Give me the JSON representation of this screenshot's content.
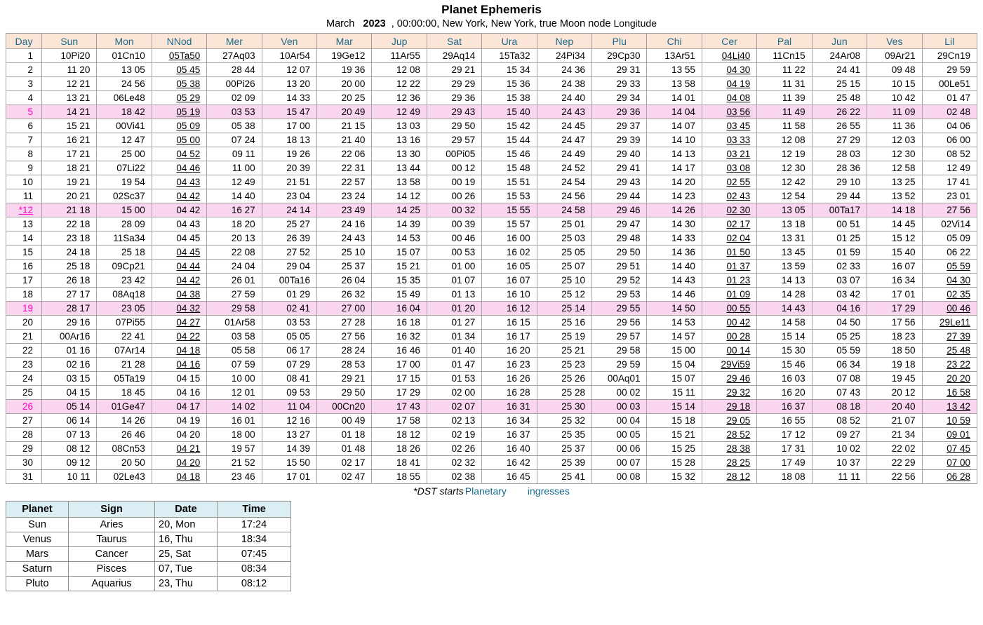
{
  "title": "Planet Ephemeris",
  "subtitle": {
    "month": "March",
    "year": "2023",
    "rest": ", 00:00:00, New York, New York, true Moon node",
    "longitude_label": "Longitude"
  },
  "footer": {
    "dst_note": "*DST starts",
    "ingresses_word1": "Planetary",
    "ingresses_word2": "ingresses"
  },
  "colors": {
    "header_bg": "#fbe5d7",
    "header_text": "#1b6a8a",
    "highlight_row_bg": "#fad5ef",
    "highlight_day_text": "#ff00bf",
    "ingress_header_bg": "#daeef3",
    "link_teal": "#17688c",
    "grid_line": "#a3a3a3"
  },
  "ephemeris": {
    "columns": [
      "Day",
      "Sun",
      "Mon",
      "NNod",
      "Mer",
      "Ven",
      "Mar",
      "Jup",
      "Sat",
      "Ura",
      "Nep",
      "Plu",
      "Chi",
      "Cer",
      "Pal",
      "Jun",
      "Ves",
      "Lil"
    ],
    "rows": [
      {
        "hl": false,
        "u": [
          3,
          13
        ],
        "cells": [
          "1",
          "10Pi20",
          "01Cn10",
          "05Ta50",
          "27Aq03",
          "10Ar54",
          "19Ge12",
          "11Ar55",
          "29Aq14",
          "15Ta32",
          "24Pi34",
          "29Cp30",
          "13Ar51",
          "04Li40",
          "11Cn15",
          "24Ar08",
          "09Ar21",
          "29Cn19"
        ]
      },
      {
        "hl": false,
        "u": [
          3,
          13
        ],
        "cells": [
          "2",
          "11 20",
          "13 05",
          "05 45",
          "28 44",
          "12 07",
          "19 36",
          "12 08",
          "29 21",
          "15 34",
          "24 36",
          "29 31",
          "13 55",
          "04 30",
          "11 22",
          "24 41",
          "09 48",
          "29 59"
        ]
      },
      {
        "hl": false,
        "u": [
          3,
          13
        ],
        "cells": [
          "3",
          "12 21",
          "24 56",
          "05 38",
          "00Pi26",
          "13 20",
          "20 00",
          "12 22",
          "29 29",
          "15 36",
          "24 38",
          "29 33",
          "13 58",
          "04 19",
          "11 31",
          "25 15",
          "10 15",
          "00Le51"
        ]
      },
      {
        "hl": false,
        "u": [
          3,
          13
        ],
        "cells": [
          "4",
          "13 21",
          "06Le48",
          "05 29",
          "02 09",
          "14 33",
          "20 25",
          "12 36",
          "29 36",
          "15 38",
          "24 40",
          "29 34",
          "14 01",
          "04 08",
          "11 39",
          "25 48",
          "10 42",
          "01 47"
        ]
      },
      {
        "hl": true,
        "u": [
          3,
          13
        ],
        "cells": [
          "5",
          "14 21",
          "18 42",
          "05 19",
          "03 53",
          "15 47",
          "20 49",
          "12 49",
          "29 43",
          "15 40",
          "24 43",
          "29 36",
          "14 04",
          "03 56",
          "11 49",
          "26 22",
          "11 09",
          "02 48"
        ]
      },
      {
        "hl": false,
        "u": [
          3,
          13
        ],
        "cells": [
          "6",
          "15 21",
          "00Vi41",
          "05 09",
          "05 38",
          "17 00",
          "21 15",
          "13 03",
          "29 50",
          "15 42",
          "24 45",
          "29 37",
          "14 07",
          "03 45",
          "11 58",
          "26 55",
          "11 36",
          "04 06"
        ]
      },
      {
        "hl": false,
        "u": [
          3,
          13
        ],
        "cells": [
          "7",
          "16 21",
          "12 47",
          "05 00",
          "07 24",
          "18 13",
          "21 40",
          "13 16",
          "29 57",
          "15 44",
          "24 47",
          "29 39",
          "14 10",
          "03 33",
          "12 08",
          "27 29",
          "12 03",
          "06 00"
        ]
      },
      {
        "hl": false,
        "u": [
          3,
          13
        ],
        "cells": [
          "8",
          "17 21",
          "25 00",
          "04 52",
          "09 11",
          "19 26",
          "22 06",
          "13 30",
          "00Pi05",
          "15 46",
          "24 49",
          "29 40",
          "14 13",
          "03 21",
          "12 19",
          "28 03",
          "12 30",
          "08 52"
        ]
      },
      {
        "hl": false,
        "u": [
          3,
          13
        ],
        "cells": [
          "9",
          "18 21",
          "07Li22",
          "04 46",
          "11 00",
          "20 39",
          "22 31",
          "13 44",
          "00 12",
          "15 48",
          "24 52",
          "29 41",
          "14 17",
          "03 08",
          "12 30",
          "28 36",
          "12 58",
          "12 49"
        ]
      },
      {
        "hl": false,
        "u": [
          3,
          13
        ],
        "cells": [
          "10",
          "19 21",
          "19 54",
          "04 43",
          "12 49",
          "21 51",
          "22 57",
          "13 58",
          "00 19",
          "15 51",
          "24 54",
          "29 43",
          "14 20",
          "02 55",
          "12 42",
          "29 10",
          "13 25",
          "17 41"
        ]
      },
      {
        "hl": false,
        "u": [
          3,
          13
        ],
        "cells": [
          "11",
          "20 21",
          "02Sc37",
          "04 42",
          "14 40",
          "23 04",
          "23 24",
          "14 12",
          "00 26",
          "15 53",
          "24 56",
          "29 44",
          "14 23",
          "02 43",
          "12 54",
          "29 44",
          "13 52",
          "23 01"
        ]
      },
      {
        "hl": true,
        "u": [
          0,
          13
        ],
        "cells": [
          "*12",
          "21 18",
          "15 00",
          "04 42",
          "16 27",
          "24 14",
          "23 49",
          "14 25",
          "00 32",
          "15 55",
          "24 58",
          "29 46",
          "14 26",
          "02 30",
          "13 05",
          "00Ta17",
          "14 18",
          "27 56"
        ]
      },
      {
        "hl": false,
        "u": [
          13
        ],
        "cells": [
          "13",
          "22 18",
          "28 09",
          "04 43",
          "18 20",
          "25 27",
          "24 16",
          "14 39",
          "00 39",
          "15 57",
          "25 01",
          "29 47",
          "14 30",
          "02 17",
          "13 18",
          "00 51",
          "14 45",
          "02Vi14"
        ]
      },
      {
        "hl": false,
        "u": [
          13
        ],
        "cells": [
          "14",
          "23 18",
          "11Sa34",
          "04 45",
          "20 13",
          "26 39",
          "24 43",
          "14 53",
          "00 46",
          "16 00",
          "25 03",
          "29 48",
          "14 33",
          "02 04",
          "13 31",
          "01 25",
          "15 12",
          "05 09"
        ]
      },
      {
        "hl": false,
        "u": [
          3,
          13
        ],
        "cells": [
          "15",
          "24 18",
          "25 18",
          "04 45",
          "22 08",
          "27 52",
          "25 10",
          "15 07",
          "00 53",
          "16 02",
          "25 05",
          "29 50",
          "14 36",
          "01 50",
          "13 45",
          "01 59",
          "15 40",
          "06 22"
        ]
      },
      {
        "hl": false,
        "u": [
          3,
          13,
          17
        ],
        "cells": [
          "16",
          "25 18",
          "09Cp21",
          "04 44",
          "24 04",
          "29 04",
          "25 37",
          "15 21",
          "01 00",
          "16 05",
          "25 07",
          "29 51",
          "14 40",
          "01 37",
          "13 59",
          "02 33",
          "16 07",
          "05 59"
        ]
      },
      {
        "hl": false,
        "u": [
          3,
          13,
          17
        ],
        "cells": [
          "17",
          "26 18",
          "23 42",
          "04 42",
          "26 01",
          "00Ta16",
          "26 04",
          "15 35",
          "01 07",
          "16 07",
          "25 10",
          "29 52",
          "14 43",
          "01 23",
          "14 13",
          "03 07",
          "16 34",
          "04 30"
        ]
      },
      {
        "hl": false,
        "u": [
          3,
          13,
          17
        ],
        "cells": [
          "18",
          "27 17",
          "08Aq18",
          "04 38",
          "27 59",
          "01 29",
          "26 32",
          "15 49",
          "01 13",
          "16 10",
          "25 12",
          "29 53",
          "14 46",
          "01 09",
          "14 28",
          "03 42",
          "17 01",
          "02 35"
        ]
      },
      {
        "hl": true,
        "u": [
          3,
          13,
          17
        ],
        "cells": [
          "19",
          "28 17",
          "23 05",
          "04 32",
          "29 58",
          "02 41",
          "27 00",
          "16 04",
          "01 20",
          "16 12",
          "25 14",
          "29 55",
          "14 50",
          "00 55",
          "14 43",
          "04 16",
          "17 29",
          "00 46"
        ]
      },
      {
        "hl": false,
        "u": [
          3,
          13,
          17
        ],
        "cells": [
          "20",
          "29 16",
          "07Pi55",
          "04 27",
          "01Ar58",
          "03 53",
          "27 28",
          "16 18",
          "01 27",
          "16 15",
          "25 16",
          "29 56",
          "14 53",
          "00 42",
          "14 58",
          "04 50",
          "17 56",
          "29Le11"
        ]
      },
      {
        "hl": false,
        "u": [
          3,
          13,
          17
        ],
        "cells": [
          "21",
          "00Ar16",
          "22 41",
          "04 22",
          "03 58",
          "05 05",
          "27 56",
          "16 32",
          "01 34",
          "16 17",
          "25 19",
          "29 57",
          "14 57",
          "00 28",
          "15 14",
          "05 25",
          "18 23",
          "27 39"
        ]
      },
      {
        "hl": false,
        "u": [
          3,
          13,
          17
        ],
        "cells": [
          "22",
          "01 16",
          "07Ar14",
          "04 18",
          "05 58",
          "06 17",
          "28 24",
          "16 46",
          "01 40",
          "16 20",
          "25 21",
          "29 58",
          "15 00",
          "00 14",
          "15 30",
          "05 59",
          "18 50",
          "25 48"
        ]
      },
      {
        "hl": false,
        "u": [
          3,
          13,
          17
        ],
        "cells": [
          "23",
          "02 16",
          "21 28",
          "04 16",
          "07 59",
          "07 29",
          "28 53",
          "17 00",
          "01 47",
          "16 23",
          "25 23",
          "29 59",
          "15 04",
          "29Vi59",
          "15 46",
          "06 34",
          "19 18",
          "23 22"
        ]
      },
      {
        "hl": false,
        "u": [
          13,
          17
        ],
        "cells": [
          "24",
          "03 15",
          "05Ta19",
          "04 15",
          "10 00",
          "08 41",
          "29 21",
          "17 15",
          "01 53",
          "16 26",
          "25 26",
          "00Aq01",
          "15 07",
          "29 46",
          "16 03",
          "07 08",
          "19 45",
          "20 20"
        ]
      },
      {
        "hl": false,
        "u": [
          13,
          17
        ],
        "cells": [
          "25",
          "04 15",
          "18 45",
          "04 16",
          "12 01",
          "09 53",
          "29 50",
          "17 29",
          "02 00",
          "16 28",
          "25 28",
          "00 02",
          "15 11",
          "29 32",
          "16 20",
          "07 43",
          "20 12",
          "16 58"
        ]
      },
      {
        "hl": true,
        "u": [
          13,
          17
        ],
        "cells": [
          "26",
          "05 14",
          "01Ge47",
          "04 17",
          "14 02",
          "11 04",
          "00Cn20",
          "17 43",
          "02 07",
          "16 31",
          "25 30",
          "00 03",
          "15 14",
          "29 18",
          "16 37",
          "08 18",
          "20 40",
          "13 42"
        ]
      },
      {
        "hl": false,
        "u": [
          13,
          17
        ],
        "cells": [
          "27",
          "06 14",
          "14 26",
          "04 19",
          "16 01",
          "12 16",
          "00 49",
          "17 58",
          "02 13",
          "16 34",
          "25 32",
          "00 04",
          "15 18",
          "29 05",
          "16 55",
          "08 52",
          "21 07",
          "10 59"
        ]
      },
      {
        "hl": false,
        "u": [
          13,
          17
        ],
        "cells": [
          "28",
          "07 13",
          "26 46",
          "04 20",
          "18 00",
          "13 27",
          "01 18",
          "18 12",
          "02 19",
          "16 37",
          "25 35",
          "00 05",
          "15 21",
          "28 52",
          "17 12",
          "09 27",
          "21 34",
          "09 01"
        ]
      },
      {
        "hl": false,
        "u": [
          3,
          13,
          17
        ],
        "cells": [
          "29",
          "08 12",
          "08Cn53",
          "04 21",
          "19 57",
          "14 39",
          "01 48",
          "18 26",
          "02 26",
          "16 40",
          "25 37",
          "00 06",
          "15 25",
          "28 38",
          "17 31",
          "10 02",
          "22 02",
          "07 45"
        ]
      },
      {
        "hl": false,
        "u": [
          3,
          13,
          17
        ],
        "cells": [
          "30",
          "09 12",
          "20 50",
          "04 20",
          "21 52",
          "15 50",
          "02 17",
          "18 41",
          "02 32",
          "16 42",
          "25 39",
          "00 07",
          "15 28",
          "28 25",
          "17 49",
          "10 37",
          "22 29",
          "07 00"
        ]
      },
      {
        "hl": false,
        "u": [
          3,
          13,
          17
        ],
        "cells": [
          "31",
          "10 11",
          "02Le43",
          "04 18",
          "23 46",
          "17 01",
          "02 47",
          "18 55",
          "02 38",
          "16 45",
          "25 41",
          "00 08",
          "15 32",
          "28 12",
          "18 08",
          "11 11",
          "22 56",
          "06 28"
        ]
      }
    ]
  },
  "ingresses": {
    "columns": [
      "Planet",
      "Sign",
      "Date",
      "Time"
    ],
    "rows": [
      [
        "Sun",
        "Aries",
        "20, Mon",
        "17:24"
      ],
      [
        "Venus",
        "Taurus",
        "16, Thu",
        "18:34"
      ],
      [
        "Mars",
        "Cancer",
        "25, Sat",
        "07:45"
      ],
      [
        "Saturn",
        "Pisces",
        "07, Tue",
        "08:34"
      ],
      [
        "Pluto",
        "Aquarius",
        "23, Thu",
        "08:12"
      ]
    ]
  }
}
